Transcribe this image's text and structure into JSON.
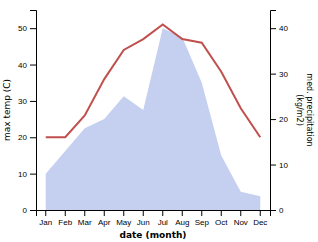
{
  "chart_data": {
    "type": "line",
    "categories": [
      "Jan",
      "Feb",
      "Mar",
      "Apr",
      "May",
      "Jun",
      "Jul",
      "Aug",
      "Sep",
      "Oct",
      "Nov",
      "Dec"
    ],
    "xlabel": "date (month)",
    "ylabel": "max temp (C)",
    "y2label": "med. precipitation\n(kg/m2)",
    "ylim": [
      0,
      55
    ],
    "yticks": [
      0,
      10,
      20,
      30,
      40,
      50
    ],
    "y2lim": [
      0,
      44
    ],
    "y2ticks": [
      0,
      10,
      20,
      30,
      40
    ],
    "series": [
      {
        "type": "area",
        "axis": "y2",
        "color": "#c5cff0",
        "values": [
          8,
          13,
          18,
          20,
          25,
          22,
          40,
          38,
          28,
          12,
          4,
          3
        ]
      },
      {
        "type": "line",
        "color": "#c0504d",
        "values": [
          20,
          20,
          26,
          36,
          44,
          47,
          51,
          47,
          46,
          38,
          28,
          20
        ]
      }
    ]
  }
}
